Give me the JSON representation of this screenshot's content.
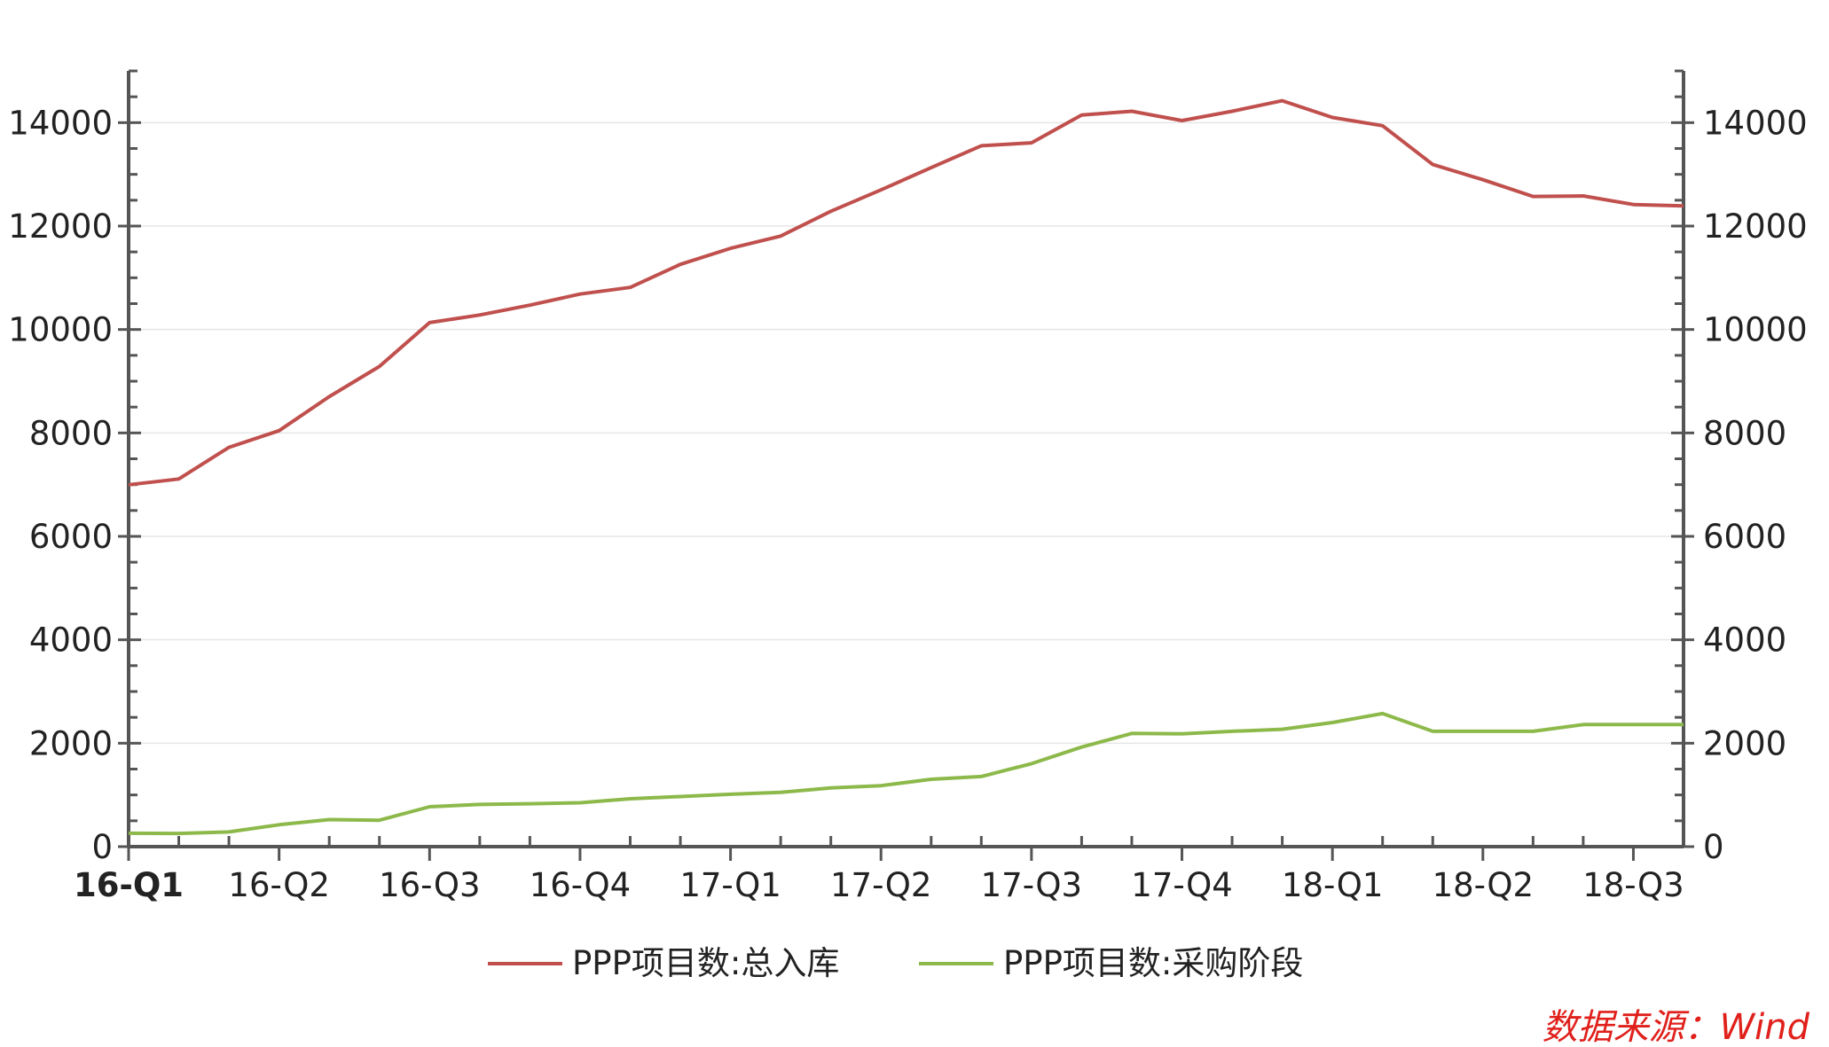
{
  "chart_data": {
    "type": "line",
    "title": "",
    "xlabel": "",
    "ylabel": "",
    "x_tick_labels": [
      "16-Q1",
      "16-Q2",
      "16-Q3",
      "16-Q4",
      "17-Q1",
      "17-Q2",
      "17-Q3",
      "17-Q4",
      "18-Q1",
      "18-Q2",
      "18-Q3"
    ],
    "y_ticks": [
      0,
      2000,
      4000,
      6000,
      8000,
      10000,
      12000,
      14000
    ],
    "y_tick_labels": [
      "0",
      "2000",
      "4000",
      "6000",
      "8000",
      "10000",
      "12000",
      "14000"
    ],
    "ylim": [
      0,
      15000
    ],
    "y2lim": [
      0,
      15000
    ],
    "grid": true,
    "legend_position": "bottom-center",
    "x": [
      "2016-03",
      "2016-04",
      "2016-05",
      "2016-06",
      "2016-07",
      "2016-08",
      "2016-09",
      "2016-10",
      "2016-11",
      "2016-12",
      "2017-01",
      "2017-02",
      "2017-03",
      "2017-04",
      "2017-05",
      "2017-06",
      "2017-07",
      "2017-08",
      "2017-09",
      "2017-10",
      "2017-11",
      "2017-12",
      "2018-01",
      "2018-02",
      "2018-03",
      "2018-04",
      "2018-05",
      "2018-06",
      "2018-07",
      "2018-08",
      "2018-09",
      "2018-10"
    ],
    "series": [
      {
        "name": "PPP项目数:总入库",
        "color": "#c0504d",
        "values": [
          6997,
          7110,
          7721,
          8043,
          8702,
          9285,
          10133,
          10280,
          10471,
          10685,
          10814,
          11260,
          11570,
          11807,
          12287,
          12700,
          13129,
          13554,
          13610,
          14147,
          14220,
          14040,
          14220,
          14424,
          14100,
          13941,
          13189,
          12896,
          12573,
          12583,
          12417,
          12390
        ]
      },
      {
        "name": "PPP项目数:采购阶段",
        "color": "#8db94b",
        "values": [
          259,
          255,
          284,
          423,
          523,
          511,
          772,
          816,
          830,
          848,
          925,
          969,
          1013,
          1050,
          1136,
          1180,
          1303,
          1356,
          1605,
          1925,
          2190,
          2180,
          2230,
          2270,
          2400,
          2574,
          2230,
          2230,
          2230,
          2360,
          2360,
          2360
        ]
      }
    ]
  },
  "source": {
    "label": "数据来源：Wind",
    "color": "#e0201b"
  }
}
